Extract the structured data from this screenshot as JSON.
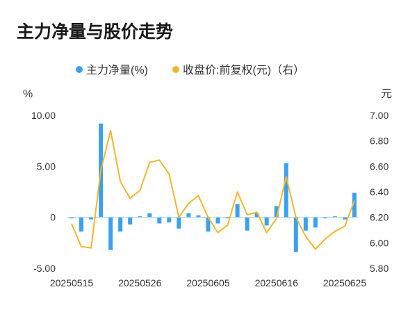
{
  "chart_data": {
    "type": "bar",
    "title": "主力净量与股价走势",
    "legend": [
      {
        "name": "主力净量(%)",
        "color": "#3aa0f0",
        "marker": "dot"
      },
      {
        "name": "收盘价:前复权(元)（右）",
        "color": "#f2b629",
        "marker": "dot"
      }
    ],
    "y_left_unit": "%",
    "y_right_unit": "元",
    "y_left": {
      "min": -5,
      "max": 10,
      "ticks": [
        "10.00",
        "5.00",
        "0",
        "-5.00"
      ],
      "tick_values": [
        10,
        5,
        0,
        -5
      ]
    },
    "y_right": {
      "min": 5.8,
      "max": 7.0,
      "ticks": [
        "7.00",
        "6.80",
        "6.60",
        "6.40",
        "6.20",
        "6.00",
        "5.80"
      ],
      "tick_values": [
        7.0,
        6.8,
        6.6,
        6.4,
        6.2,
        6.0,
        5.8
      ]
    },
    "x_tick_labels": [
      "20250515",
      "20250526",
      "20250605",
      "20250616",
      "20250625"
    ],
    "x_tick_indices": [
      0,
      7,
      14,
      21,
      28
    ],
    "series": [
      {
        "name": "主力净量(%)",
        "kind": "bar",
        "color": "#3aa0f0",
        "values": [
          -0.1,
          -1.4,
          -0.2,
          9.2,
          -3.2,
          -1.4,
          -0.7,
          0.1,
          0.4,
          -0.6,
          -0.5,
          -1.1,
          0.4,
          0.2,
          -1.4,
          -0.6,
          -0.1,
          1.3,
          -1.3,
          0.4,
          -0.8,
          1.1,
          5.3,
          -3.4,
          -1.3,
          -1.0,
          -0.1,
          0.1,
          -0.2,
          2.4
        ]
      },
      {
        "name": "收盘价:前复权(元)（右）",
        "kind": "line",
        "color": "#f2b629",
        "values": [
          6.15,
          5.97,
          5.96,
          6.57,
          6.88,
          6.48,
          6.35,
          6.41,
          6.63,
          6.65,
          6.54,
          6.2,
          6.31,
          6.37,
          6.2,
          6.08,
          6.14,
          6.4,
          6.22,
          6.24,
          6.08,
          6.19,
          6.52,
          6.2,
          6.05,
          5.95,
          6.03,
          6.09,
          6.13,
          6.33
        ]
      }
    ]
  }
}
